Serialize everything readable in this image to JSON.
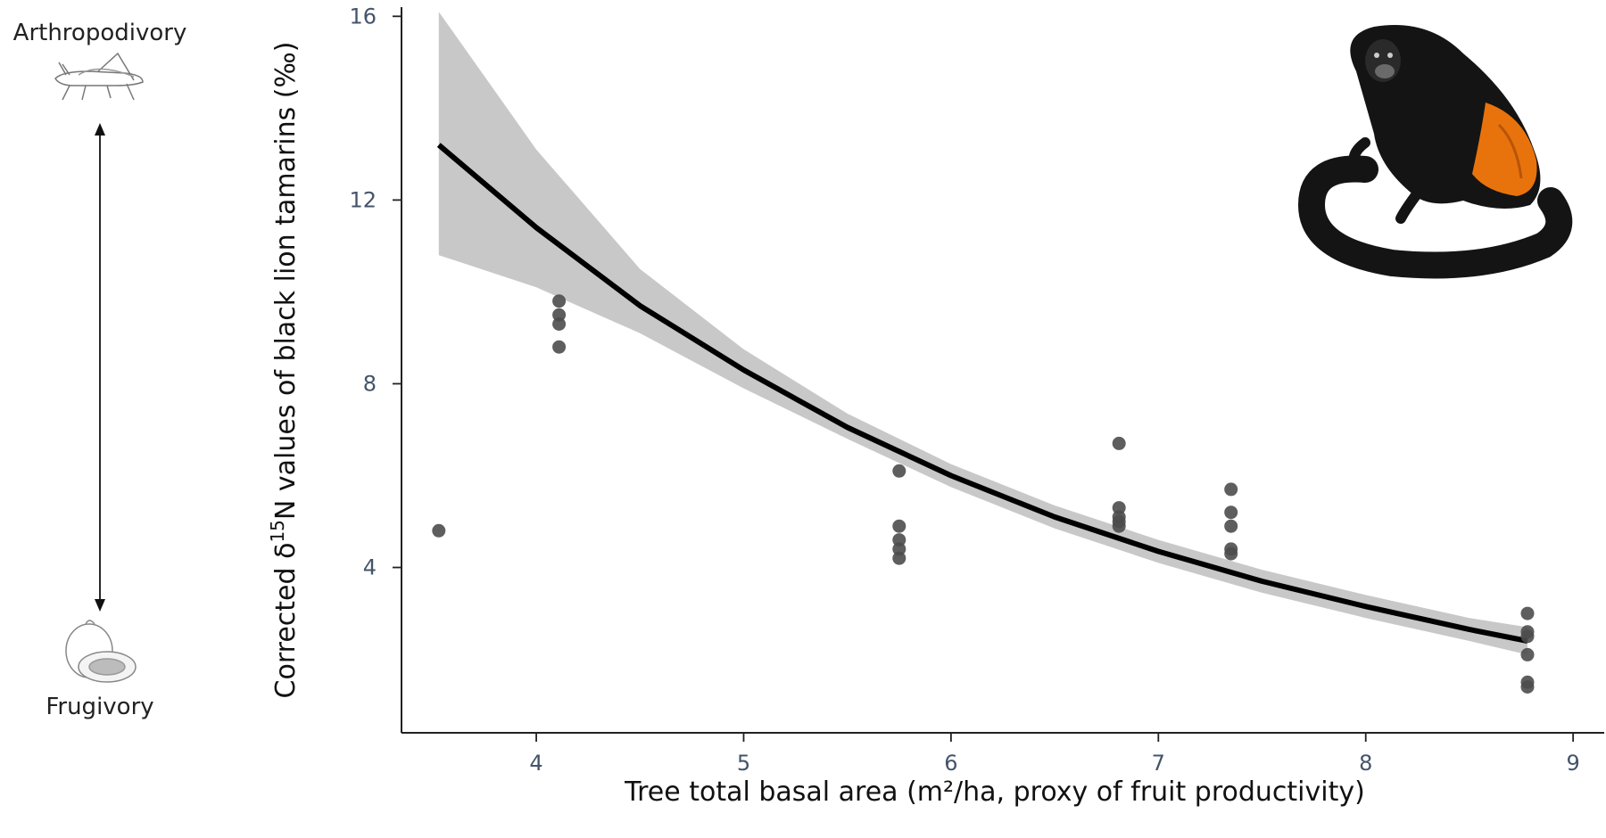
{
  "chart_data": {
    "type": "scatter",
    "xlabel": "Tree total basal area (m²/ha, proxy of fruit productivity)",
    "ylabel_parts": [
      "Corrected δ",
      "15",
      "N values of black lion tamarins (‰)"
    ],
    "xlim": [
      3.35,
      9.15
    ],
    "ylim": [
      0.4,
      16.2
    ],
    "x_ticks": [
      4,
      5,
      6,
      7,
      8,
      9
    ],
    "y_ticks": [
      4,
      8,
      12,
      16
    ],
    "grid": false,
    "points": [
      {
        "x": 3.53,
        "y": 4.8
      },
      {
        "x": 4.11,
        "y": 9.8
      },
      {
        "x": 4.11,
        "y": 9.5
      },
      {
        "x": 4.11,
        "y": 9.3
      },
      {
        "x": 4.11,
        "y": 8.8
      },
      {
        "x": 5.75,
        "y": 6.1
      },
      {
        "x": 5.75,
        "y": 4.9
      },
      {
        "x": 5.75,
        "y": 4.6
      },
      {
        "x": 5.75,
        "y": 4.4
      },
      {
        "x": 5.75,
        "y": 4.2
      },
      {
        "x": 6.81,
        "y": 6.7
      },
      {
        "x": 6.81,
        "y": 5.3
      },
      {
        "x": 6.81,
        "y": 5.1
      },
      {
        "x": 6.81,
        "y": 5.0
      },
      {
        "x": 6.81,
        "y": 4.9
      },
      {
        "x": 7.35,
        "y": 5.7
      },
      {
        "x": 7.35,
        "y": 5.2
      },
      {
        "x": 7.35,
        "y": 4.9
      },
      {
        "x": 7.35,
        "y": 4.4
      },
      {
        "x": 7.35,
        "y": 4.3
      },
      {
        "x": 8.78,
        "y": 3.0
      },
      {
        "x": 8.78,
        "y": 2.6
      },
      {
        "x": 8.78,
        "y": 2.5
      },
      {
        "x": 8.78,
        "y": 2.1
      },
      {
        "x": 8.78,
        "y": 1.5
      },
      {
        "x": 8.78,
        "y": 1.4
      }
    ],
    "fit_line": {
      "x": [
        3.53,
        4.0,
        4.5,
        5.0,
        5.5,
        6.0,
        6.5,
        7.0,
        7.5,
        8.0,
        8.5,
        8.78
      ],
      "y": [
        13.2,
        11.4,
        9.7,
        8.3,
        7.05,
        6.0,
        5.1,
        4.35,
        3.7,
        3.15,
        2.65,
        2.4
      ]
    },
    "confidence_band": {
      "x": [
        3.53,
        4.0,
        4.5,
        5.0,
        5.5,
        6.0,
        6.5,
        7.0,
        7.5,
        8.0,
        8.5,
        8.78
      ],
      "lower": [
        10.8,
        10.1,
        9.1,
        7.9,
        6.8,
        5.75,
        4.85,
        4.1,
        3.45,
        2.9,
        2.4,
        2.1
      ],
      "upper": [
        16.1,
        13.1,
        10.5,
        8.75,
        7.35,
        6.25,
        5.35,
        4.6,
        3.95,
        3.4,
        2.9,
        2.7
      ]
    },
    "side_annotations": {
      "top": "Arthropodivory",
      "bottom": "Frugivory"
    },
    "colors": {
      "points": "#4d4d4d",
      "fit_line": "#000000",
      "band": "#c8c8c8",
      "tick_labels": "#44546a",
      "tamarin_body": "#141414",
      "tamarin_orange": "#e8730c"
    },
    "icons": [
      "grasshopper-icon",
      "papaya-icon",
      "black-lion-tamarin-illustration"
    ]
  }
}
